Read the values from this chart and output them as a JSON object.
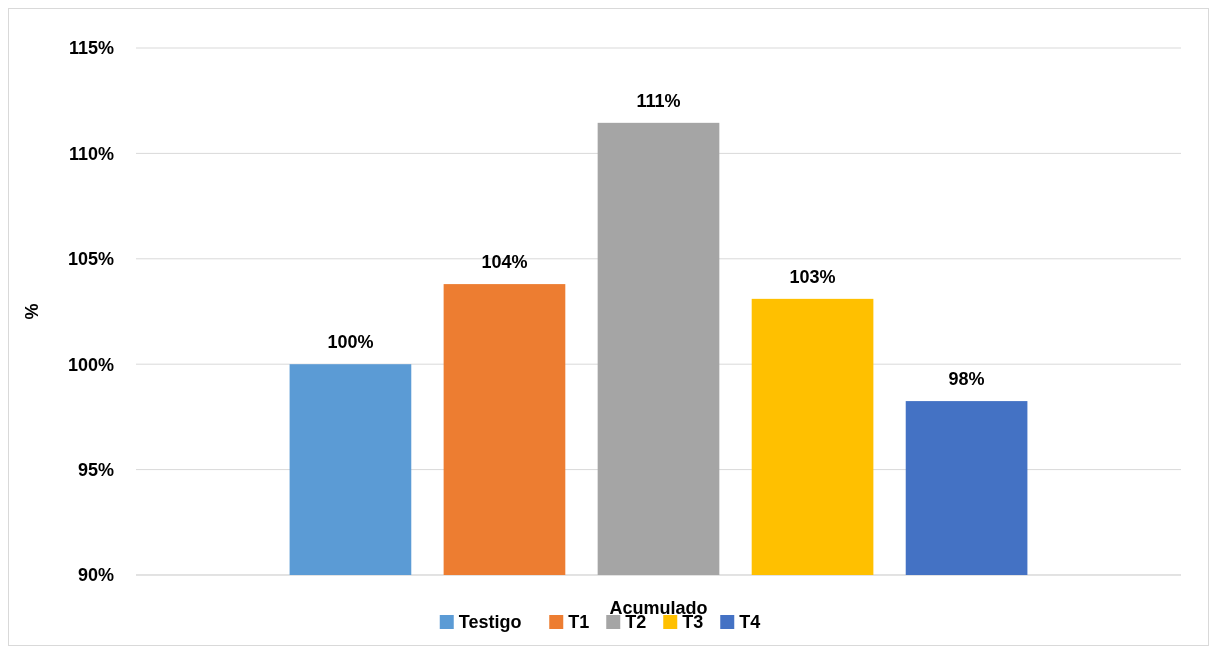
{
  "chart_data": {
    "type": "bar",
    "xlabel": "Acumulado",
    "ylabel": "%",
    "categories": [
      null
    ],
    "series": [
      {
        "name": "Testigo",
        "color": "#5b9bd5",
        "values": [
          100
        ],
        "value_labels": [
          "100%"
        ]
      },
      {
        "name": "T1",
        "color": "#ed7d31",
        "values": [
          103.8
        ],
        "value_labels": [
          "104%"
        ]
      },
      {
        "name": "T2",
        "color": "#a5a5a5",
        "values": [
          111.45
        ],
        "value_labels": [
          "111%"
        ]
      },
      {
        "name": "T3",
        "color": "#ffc000",
        "values": [
          103.1
        ],
        "value_labels": [
          "103%"
        ]
      },
      {
        "name": "T4",
        "color": "#4472c4",
        "values": [
          98.25
        ],
        "value_labels": [
          "98%"
        ]
      }
    ],
    "ylim": [
      90,
      115
    ],
    "yticks": [
      {
        "value": 90,
        "label": "90%"
      },
      {
        "value": 95,
        "label": "95%"
      },
      {
        "value": 100,
        "label": "100%"
      },
      {
        "value": 105,
        "label": "105%"
      },
      {
        "value": 110,
        "label": "110%"
      },
      {
        "value": 115,
        "label": "115%"
      }
    ],
    "grid": "y",
    "legend": "bottom"
  }
}
